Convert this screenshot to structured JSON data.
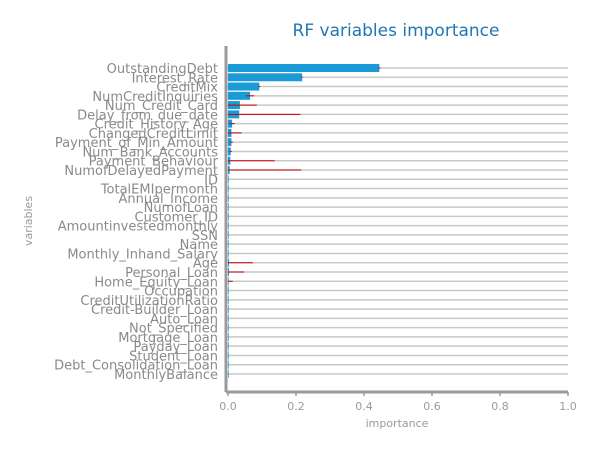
{
  "chart_data": {
    "type": "bar",
    "orientation": "horizontal",
    "title": "RF variables importance",
    "xlabel": "importance",
    "ylabel": "variables",
    "xlim": [
      0,
      1.0
    ],
    "xticks": [
      "0.0",
      "0.2",
      "0.4",
      "0.6",
      "0.8",
      "1.0"
    ],
    "grid": "horizontal lines per category",
    "bar_color": "#1a9bd7",
    "error_color": "#cc0000",
    "categories": [
      "OutstandingDebt",
      "Interest_Rate",
      "CreditMix",
      "NumCreditInquiries",
      "Num_Credit_Card",
      "Delay_from_due_date",
      "Credit_History_Age",
      "ChangedCreditLimit",
      "Payment_of_Min_Amount",
      "Num_Bank_Accounts",
      "Payment_Behaviour",
      "NumofDelayedPayment",
      "ID",
      "TotalEMIpermonth",
      "Annual_Income",
      "NumofLoan",
      "Customer_ID",
      "Amountinvestedmonthly",
      "SSN",
      "Name",
      "Monthly_Inhand_Salary",
      "Age",
      "Personal_Loan",
      "Home_Equity_Loan",
      "Occupation",
      "CreditUtilizationRatio",
      "Credit-Builder_Loan",
      "Auto_Loan",
      "Not_Specified",
      "Mortgage_Loan",
      "Payday_Loan",
      "Student_Loan",
      "Debt_Consolidation_Loan",
      "MonthlyBalance"
    ],
    "values": [
      0.445,
      0.218,
      0.092,
      0.065,
      0.035,
      0.033,
      0.012,
      0.01,
      0.01,
      0.008,
      0.007,
      0.005,
      0.002,
      0.002,
      0.002,
      0.002,
      0.002,
      0.002,
      0.002,
      0.002,
      0.002,
      0.003,
      0.003,
      0.002,
      0.002,
      0.002,
      0.002,
      0.002,
      0.002,
      0.002,
      0.002,
      0.002,
      0.002,
      0.002
    ],
    "errors": [
      0.003,
      0.002,
      0.003,
      0.012,
      0.05,
      0.18,
      0.008,
      0.03,
      0.004,
      0.003,
      0.13,
      0.21,
      0.0,
      0.0,
      0.0,
      0.0,
      0.0,
      0.0,
      0.0,
      0.0,
      0.0,
      0.07,
      0.045,
      0.012,
      0.0,
      0.0,
      0.0,
      0.0,
      0.0,
      0.0,
      0.0,
      0.0,
      0.0,
      0.0
    ]
  }
}
